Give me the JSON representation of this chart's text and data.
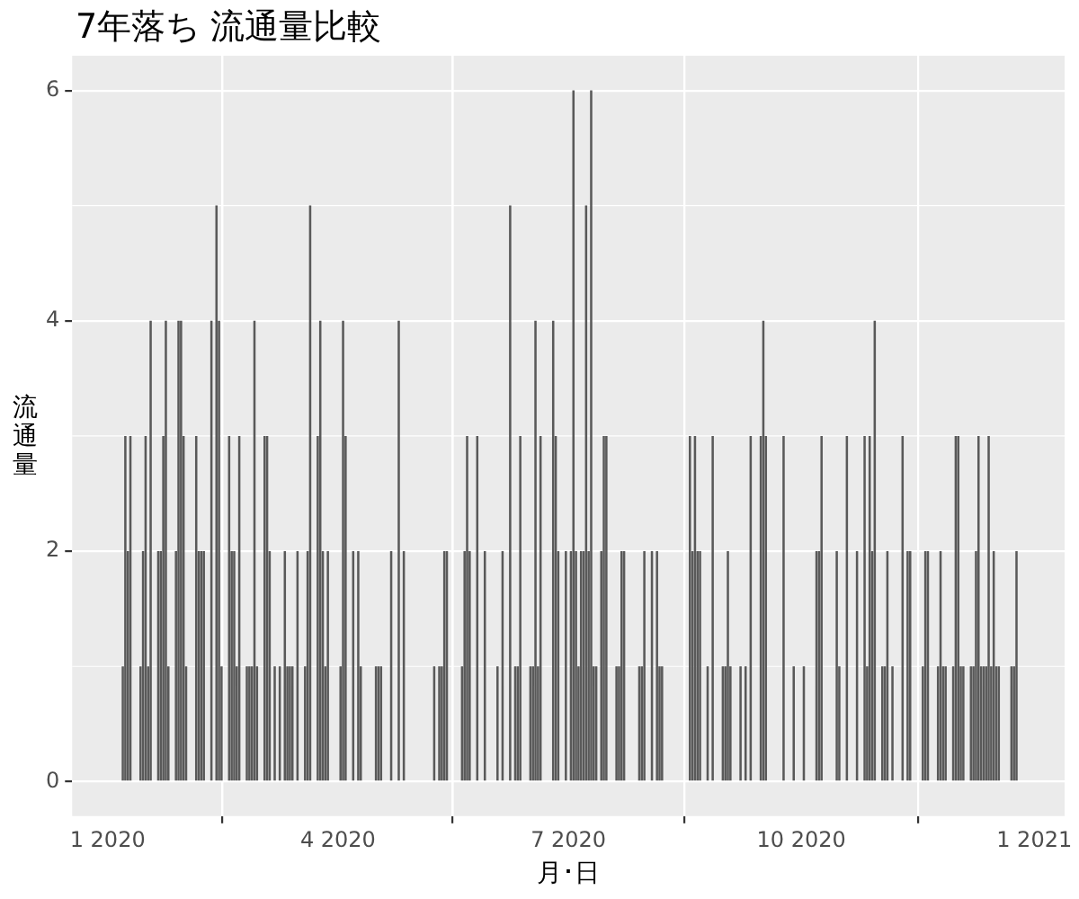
{
  "chart_data": {
    "type": "bar",
    "title": "7年落ち 流通量比較",
    "xlabel": "月･日",
    "ylabel": "流通量",
    "x": [
      "2020-01-07",
      "2020-01-08",
      "2020-01-09",
      "2020-01-10",
      "2020-01-14",
      "2020-01-15",
      "2020-01-16",
      "2020-01-17",
      "2020-01-18",
      "2020-01-21",
      "2020-01-22",
      "2020-01-23",
      "2020-01-24",
      "2020-01-25",
      "2020-01-28",
      "2020-01-29",
      "2020-01-30",
      "2020-01-31",
      "2020-02-01",
      "2020-02-05",
      "2020-02-06",
      "2020-02-07",
      "2020-02-08",
      "2020-02-11",
      "2020-02-13",
      "2020-02-14",
      "2020-02-15",
      "2020-02-18",
      "2020-02-19",
      "2020-02-20",
      "2020-02-21",
      "2020-02-22",
      "2020-02-25",
      "2020-02-26",
      "2020-02-27",
      "2020-02-28",
      "2020-02-29",
      "2020-03-03",
      "2020-03-04",
      "2020-03-05",
      "2020-03-07",
      "2020-03-09",
      "2020-03-11",
      "2020-03-12",
      "2020-03-13",
      "2020-03-14",
      "2020-03-16",
      "2020-03-19",
      "2020-03-20",
      "2020-03-21",
      "2020-03-24",
      "2020-03-25",
      "2020-03-26",
      "2020-03-27",
      "2020-03-28",
      "2020-04-02",
      "2020-04-03",
      "2020-04-04",
      "2020-04-07",
      "2020-04-09",
      "2020-04-10",
      "2020-04-16",
      "2020-04-17",
      "2020-04-18",
      "2020-04-22",
      "2020-04-25",
      "2020-04-27",
      "2020-05-09",
      "2020-05-11",
      "2020-05-12",
      "2020-05-13",
      "2020-05-14",
      "2020-05-20",
      "2020-05-21",
      "2020-05-22",
      "2020-05-23",
      "2020-05-26",
      "2020-05-29",
      "2020-06-03",
      "2020-06-05",
      "2020-06-08",
      "2020-06-10",
      "2020-06-11",
      "2020-06-12",
      "2020-06-16",
      "2020-06-17",
      "2020-06-18",
      "2020-06-19",
      "2020-06-20",
      "2020-06-25",
      "2020-06-26",
      "2020-06-27",
      "2020-06-30",
      "2020-07-02",
      "2020-07-03",
      "2020-07-04",
      "2020-07-05",
      "2020-07-06",
      "2020-07-07",
      "2020-07-08",
      "2020-07-09",
      "2020-07-10",
      "2020-07-11",
      "2020-07-12",
      "2020-07-14",
      "2020-07-15",
      "2020-07-16",
      "2020-07-20",
      "2020-07-21",
      "2020-07-22",
      "2020-07-23",
      "2020-07-29",
      "2020-07-30",
      "2020-07-31",
      "2020-08-03",
      "2020-08-05",
      "2020-08-06",
      "2020-08-07",
      "2020-08-18",
      "2020-08-19",
      "2020-08-20",
      "2020-08-21",
      "2020-08-22",
      "2020-08-25",
      "2020-08-27",
      "2020-08-31",
      "2020-09-01",
      "2020-09-02",
      "2020-09-03",
      "2020-09-07",
      "2020-09-09",
      "2020-09-11",
      "2020-09-15",
      "2020-09-16",
      "2020-09-17",
      "2020-09-24",
      "2020-09-28",
      "2020-10-02",
      "2020-10-07",
      "2020-10-08",
      "2020-10-09",
      "2020-10-15",
      "2020-10-16",
      "2020-10-19",
      "2020-10-23",
      "2020-10-26",
      "2020-10-27",
      "2020-10-28",
      "2020-10-29",
      "2020-10-30",
      "2020-11-02",
      "2020-11-03",
      "2020-11-04",
      "2020-11-06",
      "2020-11-10",
      "2020-11-12",
      "2020-11-13",
      "2020-11-18",
      "2020-11-19",
      "2020-11-20",
      "2020-11-24",
      "2020-11-25",
      "2020-11-26",
      "2020-11-27",
      "2020-11-30",
      "2020-12-01",
      "2020-12-02",
      "2020-12-03",
      "2020-12-04",
      "2020-12-07",
      "2020-12-08",
      "2020-12-09",
      "2020-12-10",
      "2020-12-11",
      "2020-12-12",
      "2020-12-13",
      "2020-12-14",
      "2020-12-15",
      "2020-12-16",
      "2020-12-17",
      "2020-12-18",
      "2020-12-23",
      "2020-12-24",
      "2020-12-25"
    ],
    "values": [
      1,
      3,
      2,
      3,
      1,
      2,
      3,
      1,
      4,
      2,
      2,
      3,
      4,
      1,
      2,
      4,
      4,
      3,
      1,
      3,
      2,
      2,
      2,
      4,
      5,
      4,
      1,
      3,
      2,
      2,
      1,
      3,
      1,
      1,
      1,
      4,
      1,
      3,
      3,
      2,
      1,
      1,
      2,
      1,
      1,
      1,
      2,
      1,
      2,
      5,
      3,
      4,
      2,
      1,
      2,
      1,
      4,
      3,
      2,
      2,
      1,
      1,
      1,
      1,
      2,
      4,
      2,
      1,
      1,
      1,
      2,
      2,
      1,
      2,
      3,
      2,
      3,
      2,
      1,
      2,
      5,
      1,
      1,
      3,
      1,
      1,
      4,
      1,
      3,
      4,
      3,
      2,
      2,
      2,
      6,
      2,
      1,
      2,
      2,
      5,
      2,
      6,
      1,
      1,
      2,
      3,
      3,
      1,
      1,
      2,
      2,
      1,
      1,
      2,
      2,
      2,
      1,
      1,
      3,
      2,
      3,
      2,
      2,
      1,
      3,
      1,
      1,
      2,
      1,
      1,
      1,
      3,
      3,
      4,
      3,
      3,
      1,
      1,
      2,
      2,
      3,
      2,
      1,
      3,
      2,
      3,
      1,
      3,
      2,
      4,
      1,
      1,
      2,
      1,
      3,
      2,
      2,
      1,
      2,
      2,
      1,
      2,
      1,
      1,
      1,
      3,
      3,
      1,
      1,
      1,
      1,
      2,
      3,
      1,
      1,
      1,
      3,
      1,
      2,
      1,
      1,
      1,
      1,
      2
    ],
    "color": "#595959",
    "xlim": [
      "2019-12-18",
      "2021-01-13"
    ],
    "xticks": [
      {
        "value": "2020-01-01",
        "label": "1 2020"
      },
      {
        "value": "2020-04-01",
        "label": "4 2020"
      },
      {
        "value": "2020-07-01",
        "label": "7 2020"
      },
      {
        "value": "2020-10-01",
        "label": "10 2020"
      },
      {
        "value": "2021-01-01",
        "label": "1 2021"
      }
    ],
    "ylim": [
      -0.3,
      6.3
    ],
    "yticks": [
      0,
      2,
      4,
      6
    ],
    "grid": true
  }
}
